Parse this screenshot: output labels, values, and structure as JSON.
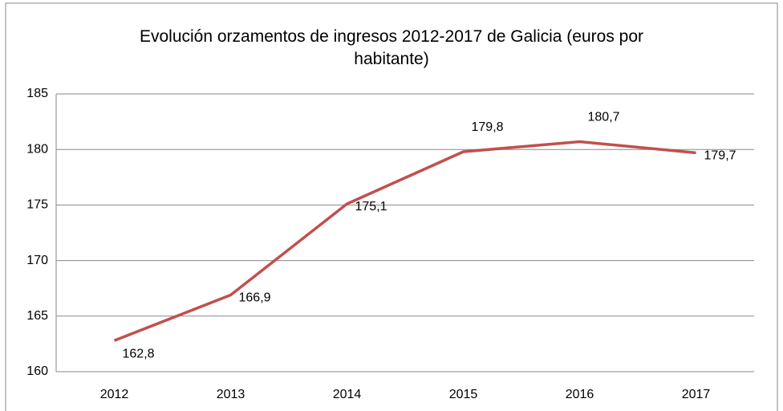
{
  "chart_data": {
    "type": "line",
    "title": "Evolución orzamentos de ingresos 2012-2017 de Galicia (euros por habitante)",
    "categories": [
      "2012",
      "2013",
      "2014",
      "2015",
      "2016",
      "2017"
    ],
    "series": [
      {
        "name": "Galicia",
        "color": "#c0504d",
        "values": [
          162.8,
          166.9,
          175.1,
          179.8,
          180.7,
          179.7
        ],
        "value_labels": [
          "162,8",
          "166,9",
          "175,1",
          "179,8",
          "180,7",
          "179,7"
        ]
      }
    ],
    "ylim": [
      160,
      185
    ],
    "yticks": [
      160,
      165,
      170,
      175,
      180,
      185
    ],
    "grid": true
  }
}
